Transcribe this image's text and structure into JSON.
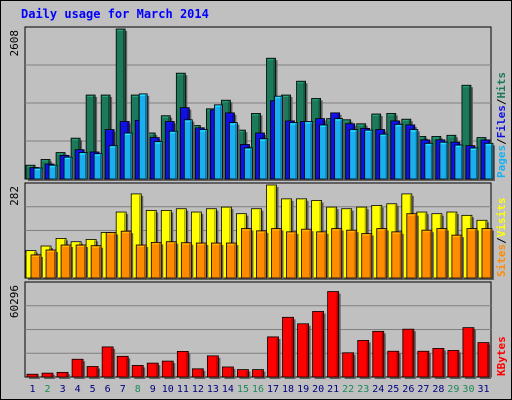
{
  "title": "Daily usage for March 2014",
  "colors": {
    "background": "#c0c0c0",
    "title": "#0000ff",
    "hits": "#1c7a5a",
    "files": "#1010e0",
    "pages": "#1ab0f0",
    "visits": "#ffff00",
    "sites": "#ff8c00",
    "kbytes": "#ff0000",
    "weekday_label": "#000080",
    "weekend_label": "#1c8a5a",
    "grid": "#808080"
  },
  "chart_data": [
    {
      "type": "bar",
      "panel": "hits",
      "axis_max_label": "2608",
      "ylim": [
        0,
        2608
      ],
      "grid": true,
      "legend": [
        "Pages",
        "/",
        "Files",
        "/",
        "Hits"
      ],
      "categories": [
        "1",
        "2",
        "3",
        "4",
        "5",
        "6",
        "7",
        "8",
        "9",
        "10",
        "11",
        "12",
        "13",
        "14",
        "15",
        "16",
        "17",
        "18",
        "19",
        "20",
        "21",
        "22",
        "23",
        "24",
        "25",
        "26",
        "27",
        "28",
        "29",
        "30",
        "31"
      ],
      "series": [
        {
          "name": "Hits",
          "values": [
            240,
            340,
            460,
            710,
            1460,
            1460,
            2608,
            1460,
            800,
            1100,
            1840,
            930,
            1220,
            1370,
            850,
            1140,
            2100,
            1460,
            1700,
            1400,
            1050,
            1030,
            960,
            1130,
            1140,
            1040,
            740,
            740,
            760,
            1630,
            720
          ]
        },
        {
          "name": "Files",
          "values": [
            200,
            260,
            410,
            510,
            470,
            860,
            1000,
            1020,
            720,
            1000,
            1240,
            890,
            1200,
            1150,
            600,
            800,
            1360,
            1010,
            1000,
            1050,
            1150,
            960,
            880,
            860,
            1010,
            940,
            680,
            680,
            640,
            580,
            680
          ]
        },
        {
          "name": "Pages",
          "values": [
            190,
            240,
            380,
            460,
            440,
            580,
            800,
            1480,
            650,
            830,
            1030,
            860,
            1290,
            980,
            540,
            700,
            1440,
            980,
            1000,
            940,
            1050,
            860,
            850,
            780,
            950,
            860,
            620,
            640,
            590,
            540,
            620
          ]
        }
      ]
    },
    {
      "type": "bar",
      "panel": "visits",
      "axis_max_label": "282",
      "ylim": [
        0,
        282
      ],
      "grid": true,
      "legend": [
        "Sites",
        "/",
        "Visits"
      ],
      "categories": [
        "1",
        "2",
        "3",
        "4",
        "5",
        "6",
        "7",
        "8",
        "9",
        "10",
        "11",
        "12",
        "13",
        "14",
        "15",
        "16",
        "17",
        "18",
        "19",
        "20",
        "21",
        "22",
        "23",
        "24",
        "25",
        "26",
        "27",
        "28",
        "29",
        "30",
        "31"
      ],
      "series": [
        {
          "name": "Visits",
          "values": [
            83,
            97,
            120,
            110,
            117,
            138,
            200,
            255,
            205,
            205,
            210,
            200,
            210,
            215,
            195,
            210,
            282,
            240,
            240,
            235,
            215,
            210,
            215,
            220,
            225,
            255,
            200,
            195,
            200,
            190,
            175
          ]
        },
        {
          "name": "Sites",
          "values": [
            70,
            85,
            100,
            100,
            98,
            138,
            142,
            100,
            108,
            110,
            107,
            106,
            106,
            106,
            150,
            143,
            150,
            140,
            148,
            140,
            150,
            145,
            135,
            150,
            140,
            195,
            145,
            150,
            130,
            150,
            150
          ]
        }
      ]
    },
    {
      "type": "bar",
      "panel": "kbytes",
      "axis_max_label": "60296",
      "ylim": [
        0,
        60296
      ],
      "grid": true,
      "legend": [
        "KBytes"
      ],
      "categories": [
        "1",
        "2",
        "3",
        "4",
        "5",
        "6",
        "7",
        "8",
        "9",
        "10",
        "11",
        "12",
        "13",
        "14",
        "15",
        "16",
        "17",
        "18",
        "19",
        "20",
        "21",
        "22",
        "23",
        "24",
        "25",
        "26",
        "27",
        "28",
        "29",
        "30",
        "31"
      ],
      "series": [
        {
          "name": "KBytes",
          "values": [
            1800,
            2500,
            3000,
            11500,
            6800,
            19500,
            13400,
            7500,
            9000,
            10300,
            16600,
            5300,
            13700,
            6500,
            4800,
            4800,
            26000,
            38700,
            34500,
            42500,
            55400,
            15700,
            23700,
            29600,
            16700,
            31000,
            16700,
            18500,
            17200,
            32000,
            22300
          ]
        }
      ]
    }
  ],
  "x_axis": {
    "labels": [
      "1",
      "2",
      "3",
      "4",
      "5",
      "6",
      "7",
      "8",
      "9",
      "10",
      "11",
      "12",
      "13",
      "14",
      "15",
      "16",
      "17",
      "18",
      "19",
      "20",
      "21",
      "22",
      "23",
      "24",
      "25",
      "26",
      "27",
      "28",
      "29",
      "30",
      "31"
    ],
    "weekend": [
      false,
      true,
      false,
      false,
      false,
      false,
      false,
      true,
      false,
      false,
      false,
      false,
      false,
      false,
      true,
      true,
      false,
      false,
      false,
      false,
      false,
      true,
      true,
      false,
      false,
      false,
      false,
      false,
      true,
      true,
      false
    ]
  }
}
